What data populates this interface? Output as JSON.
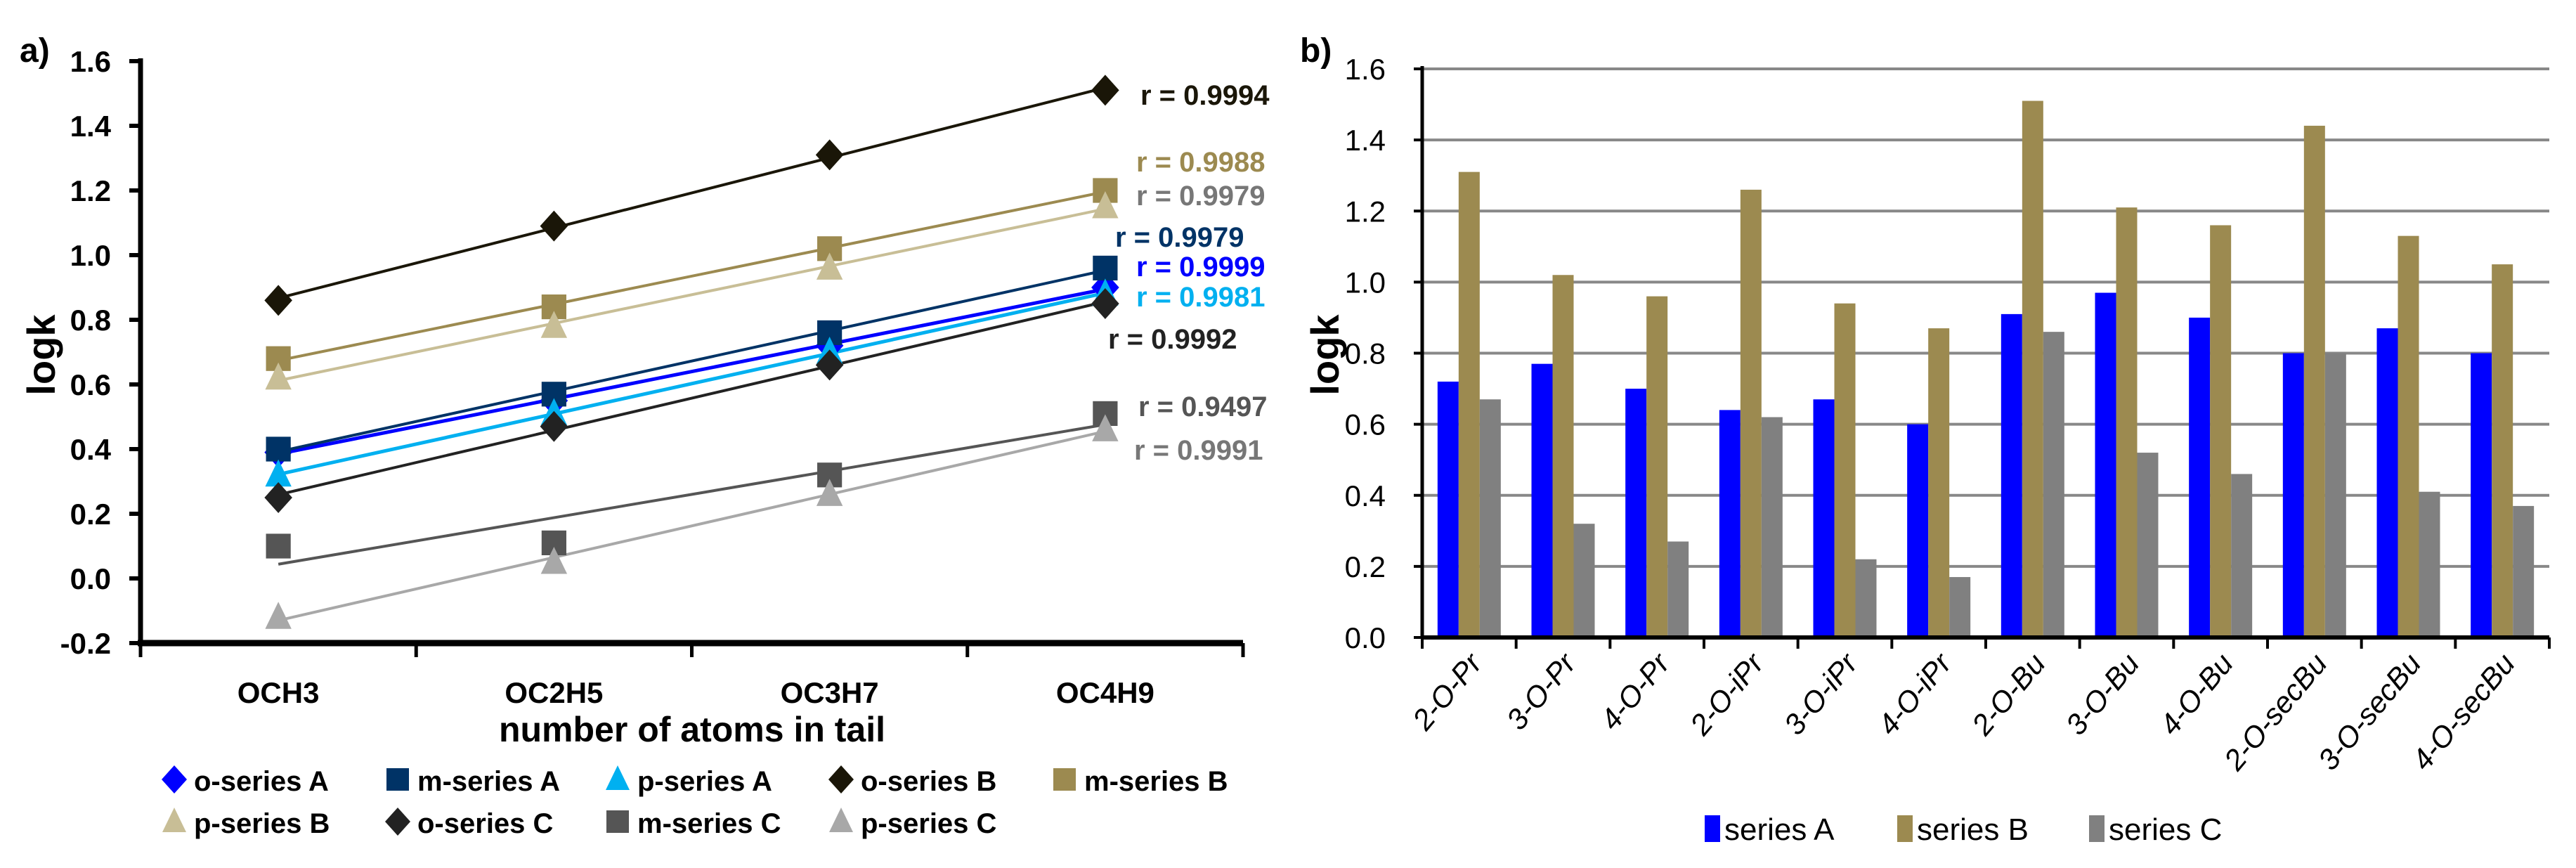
{
  "chart_data": [
    {
      "panel": "a)",
      "type": "line",
      "title": "",
      "xlabel": "number of atoms in tail",
      "ylabel": "logk",
      "ylim": [
        -0.2,
        1.6
      ],
      "yticks": [
        "-0.2",
        "0.0",
        "0.2",
        "0.4",
        "0.6",
        "0.8",
        "1.0",
        "1.2",
        "1.4",
        "1.6"
      ],
      "categories": [
        "OCH3",
        "OC2H5",
        "OC3H7",
        "OC4H9"
      ],
      "grid": false,
      "legend_placement": "bottom",
      "series": [
        {
          "name": "o-series A",
          "marker": "diamond",
          "color": "#0000FF",
          "values": [
            0.39,
            0.55,
            0.72,
            0.9
          ],
          "r_label": "r = 0.9999"
        },
        {
          "name": "m-series A",
          "marker": "square",
          "color": "#003366",
          "values": [
            0.4,
            0.57,
            0.76,
            0.96
          ],
          "r_label": "r = 0.9979"
        },
        {
          "name": "p-series A",
          "marker": "triangle",
          "color": "#00B0F0",
          "values": [
            0.32,
            0.51,
            0.7,
            0.88
          ],
          "r_label": "r = 0.9981"
        },
        {
          "name": "o-series B",
          "marker": "diamond",
          "color": "#1A1608",
          "values": [
            0.86,
            1.09,
            1.31,
            1.51
          ],
          "r_label": "r = 0.9994"
        },
        {
          "name": "m-series B",
          "marker": "square",
          "color": "#9C8A50",
          "values": [
            0.68,
            0.84,
            1.02,
            1.2
          ],
          "r_label": "r = 0.9988"
        },
        {
          "name": "p-series B",
          "marker": "triangle",
          "color": "#C8BE96",
          "values": [
            0.62,
            0.78,
            0.96,
            1.15
          ],
          "r_label": "r = 0.9979"
        },
        {
          "name": "o-series C",
          "marker": "diamond",
          "color": "#222222",
          "values": [
            0.25,
            0.47,
            0.66,
            0.85
          ],
          "r_label": "r = 0.9992"
        },
        {
          "name": "m-series C",
          "marker": "square",
          "color": "#555555",
          "values": [
            0.1,
            0.11,
            0.32,
            0.51
          ],
          "r_label": "r = 0.9497"
        },
        {
          "name": "p-series C",
          "marker": "triangle",
          "color": "#A8A8A8",
          "values": [
            -0.12,
            0.05,
            0.26,
            0.46
          ],
          "r_label": "r = 0.9991"
        }
      ]
    },
    {
      "panel": "b)",
      "type": "bar",
      "title": "",
      "xlabel": "",
      "ylabel": "logk",
      "ylim": [
        0,
        1.6
      ],
      "yticks": [
        "0.0",
        "0.2",
        "0.4",
        "0.6",
        "0.8",
        "1.0",
        "1.2",
        "1.4",
        "1.6"
      ],
      "grid": true,
      "legend_placement": "bottom",
      "categories": [
        "2-O-Pr",
        "3-O-Pr",
        "4-O-Pr",
        "2-O-iPr",
        "3-O-iPr",
        "4-O-iPr",
        "2-O-Bu",
        "3-O-Bu",
        "4-O-Bu",
        "2-O-secBu",
        "3-O-secBu",
        "4-O-secBu"
      ],
      "series": [
        {
          "name": "series A",
          "color": "#0000FF",
          "values": [
            0.72,
            0.77,
            0.7,
            0.64,
            0.67,
            0.6,
            0.91,
            0.97,
            0.9,
            0.8,
            0.87,
            0.8
          ]
        },
        {
          "name": "series B",
          "color": "#9C8A50",
          "values": [
            1.31,
            1.02,
            0.96,
            1.26,
            0.94,
            0.87,
            1.51,
            1.21,
            1.16,
            1.44,
            1.13,
            1.05
          ]
        },
        {
          "name": "series C",
          "color": "#808080",
          "values": [
            0.67,
            0.32,
            0.27,
            0.62,
            0.22,
            0.17,
            0.86,
            0.52,
            0.46,
            0.8,
            0.41,
            0.37
          ]
        }
      ]
    }
  ]
}
